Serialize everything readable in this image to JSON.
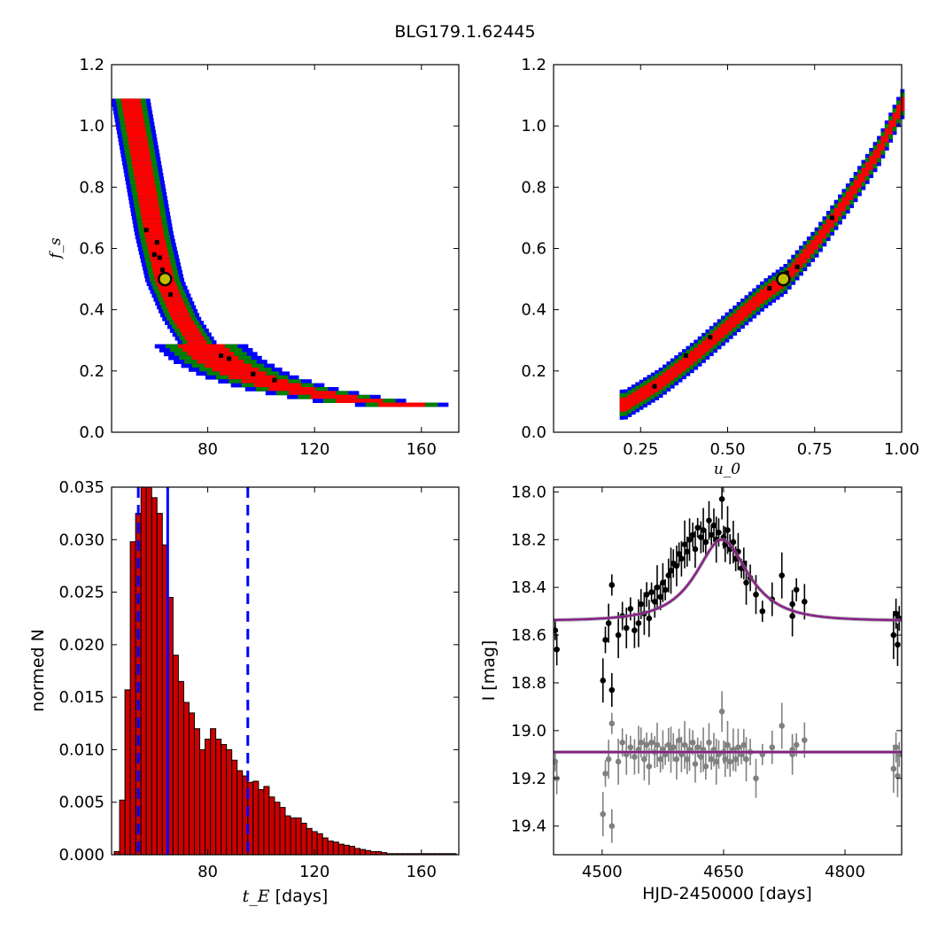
{
  "figure_title": "BLG179.1.62445",
  "colors": {
    "sigma1": "#ff0000",
    "sigma2": "#008000",
    "sigma3": "#0000ff",
    "best": "#000000",
    "marker_fill": "#bfbf00",
    "hist_bar": "#cc0000",
    "hist_lines": "#0000ff",
    "model": "#8b1a8b",
    "data_top": "#000000",
    "data_bottom": "#808080"
  },
  "chart_data": [
    {
      "id": "fs_vs_tE",
      "type": "heatmap",
      "title": "",
      "xlabel": "",
      "ylabel": "f_s",
      "xlim": [
        44,
        174
      ],
      "ylim": [
        0.0,
        1.2
      ],
      "xticks": [
        80,
        120,
        160
      ],
      "yticks": [
        "0.0",
        "0.2",
        "0.4",
        "0.6",
        "0.8",
        "1.0",
        "1.2"
      ],
      "levels": [
        "1-sigma",
        "2-sigma",
        "3-sigma"
      ],
      "ridge_points": [
        {
          "x": 51,
          "y": 1.1
        },
        {
          "x": 54,
          "y": 0.95
        },
        {
          "x": 57,
          "y": 0.8
        },
        {
          "x": 60,
          "y": 0.65
        },
        {
          "x": 64,
          "y": 0.5
        },
        {
          "x": 70,
          "y": 0.38
        },
        {
          "x": 76,
          "y": 0.3
        },
        {
          "x": 84,
          "y": 0.24
        },
        {
          "x": 95,
          "y": 0.19
        },
        {
          "x": 110,
          "y": 0.15
        },
        {
          "x": 125,
          "y": 0.125
        },
        {
          "x": 140,
          "y": 0.105
        },
        {
          "x": 155,
          "y": 0.095
        },
        {
          "x": 165,
          "y": 0.09
        }
      ],
      "best_fit": {
        "x": 64,
        "y": 0.5
      }
    },
    {
      "id": "fs_vs_u0",
      "type": "heatmap",
      "title": "",
      "xlabel": "u_0",
      "ylabel": "",
      "xlim": [
        0.0,
        1.0
      ],
      "ylim": [
        0.0,
        1.2
      ],
      "xticks": [
        "0.25",
        "0.50",
        "0.75",
        "1.00"
      ],
      "yticks": [
        "0.0",
        "0.2",
        "0.4",
        "0.6",
        "0.8",
        "1.0",
        "1.2"
      ],
      "levels": [
        "1-sigma",
        "2-sigma",
        "3-sigma"
      ],
      "ridge_points": [
        {
          "x": 0.2,
          "y": 0.09
        },
        {
          "x": 0.3,
          "y": 0.16
        },
        {
          "x": 0.4,
          "y": 0.25
        },
        {
          "x": 0.5,
          "y": 0.35
        },
        {
          "x": 0.6,
          "y": 0.45
        },
        {
          "x": 0.66,
          "y": 0.5
        },
        {
          "x": 0.75,
          "y": 0.62
        },
        {
          "x": 0.85,
          "y": 0.78
        },
        {
          "x": 0.93,
          "y": 0.92
        },
        {
          "x": 1.0,
          "y": 1.08
        }
      ],
      "best_fit": {
        "x": 0.66,
        "y": 0.5
      }
    },
    {
      "id": "tE_histogram",
      "type": "bar",
      "title": "",
      "xlabel": "t_E",
      "xlabel_unit": "[days]",
      "ylabel": "normed N",
      "xlim": [
        44,
        174
      ],
      "ylim": [
        0.0,
        0.035
      ],
      "xticks": [
        80,
        120,
        160
      ],
      "yticks": [
        "0.000",
        "0.005",
        "0.010",
        "0.015",
        "0.020",
        "0.025",
        "0.030",
        "0.035"
      ],
      "bin_start": 45,
      "bin_width": 2,
      "values": [
        0.0003,
        0.0052,
        0.0157,
        0.0298,
        0.0325,
        0.035,
        0.035,
        0.034,
        0.0325,
        0.0295,
        0.0245,
        0.019,
        0.0165,
        0.0145,
        0.0135,
        0.012,
        0.01,
        0.011,
        0.012,
        0.011,
        0.0105,
        0.01,
        0.009,
        0.008,
        0.0075,
        0.0069,
        0.007,
        0.0062,
        0.0065,
        0.0055,
        0.005,
        0.0045,
        0.0037,
        0.0035,
        0.0035,
        0.003,
        0.0025,
        0.0022,
        0.002,
        0.0016,
        0.0013,
        0.0012,
        0.001,
        0.0009,
        0.0008,
        0.0006,
        0.0005,
        0.0004,
        0.0003,
        0.0003,
        0.0002,
        0.0001,
        0.0001,
        0.0001,
        0.0001,
        0.0001,
        0.0001,
        0.0001,
        0.0001,
        0.0001,
        0.0001,
        0.0001,
        0.0001,
        0.0001
      ],
      "median_line": 65,
      "interval_lines": [
        54,
        95
      ]
    },
    {
      "id": "light_curve",
      "type": "scatter",
      "title": "",
      "xlabel": "HJD-2450000 [days]",
      "ylabel": "I [mag]",
      "xlim": [
        4440,
        4870
      ],
      "ylim": [
        19.52,
        17.98
      ],
      "xticks": [
        4500,
        4650,
        4800
      ],
      "yticks": [
        "18.0",
        "18.2",
        "18.4",
        "18.6",
        "18.8",
        "19.0",
        "19.2",
        "19.4"
      ],
      "model_top": {
        "t0": 4648,
        "base": 18.54,
        "peak": 18.2,
        "tE": 55,
        "u0": 0.66
      },
      "model_bottom": {
        "level": 19.09
      },
      "series": [
        {
          "name": "",
          "role": "observed",
          "points": [
            [
              4442,
              18.58
            ],
            [
              4444,
              18.66
            ],
            [
              4501,
              18.79
            ],
            [
              4504,
              18.62
            ],
            [
              4508,
              18.55
            ],
            [
              4512,
              18.39
            ],
            [
              4512,
              18.83
            ],
            [
              4520,
              18.6
            ],
            [
              4525,
              18.52
            ],
            [
              4530,
              18.57
            ],
            [
              4535,
              18.49
            ],
            [
              4540,
              18.58
            ],
            [
              4545,
              18.55
            ],
            [
              4548,
              18.47
            ],
            [
              4552,
              18.51
            ],
            [
              4555,
              18.43
            ],
            [
              4558,
              18.53
            ],
            [
              4561,
              18.42
            ],
            [
              4565,
              18.46
            ],
            [
              4568,
              18.4
            ],
            [
              4572,
              18.44
            ],
            [
              4575,
              18.38
            ],
            [
              4578,
              18.41
            ],
            [
              4582,
              18.35
            ],
            [
              4585,
              18.33
            ],
            [
              4588,
              18.3
            ],
            [
              4592,
              18.31
            ],
            [
              4595,
              18.26
            ],
            [
              4598,
              18.28
            ],
            [
              4602,
              18.22
            ],
            [
              4605,
              18.25
            ],
            [
              4608,
              18.2
            ],
            [
              4612,
              18.18
            ],
            [
              4615,
              18.24
            ],
            [
              4618,
              18.15
            ],
            [
              4622,
              18.19
            ],
            [
              4625,
              18.16
            ],
            [
              4628,
              18.21
            ],
            [
              4632,
              18.12
            ],
            [
              4635,
              18.18
            ],
            [
              4638,
              18.14
            ],
            [
              4641,
              18.2
            ],
            [
              4644,
              18.17
            ],
            [
              4648,
              18.03
            ],
            [
              4650,
              18.19
            ],
            [
              4652,
              18.22
            ],
            [
              4655,
              18.16
            ],
            [
              4658,
              18.24
            ],
            [
              4662,
              18.21
            ],
            [
              4665,
              18.28
            ],
            [
              4668,
              18.25
            ],
            [
              4672,
              18.32
            ],
            [
              4675,
              18.3
            ],
            [
              4678,
              18.38
            ],
            [
              4683,
              18.36
            ],
            [
              4690,
              18.43
            ],
            [
              4698,
              18.5
            ],
            [
              4710,
              18.45
            ],
            [
              4722,
              18.35
            ],
            [
              4735,
              18.47
            ],
            [
              4735,
              18.52
            ],
            [
              4740,
              18.41
            ],
            [
              4750,
              18.46
            ],
            [
              4860,
              18.6
            ],
            [
              4863,
              18.51
            ],
            [
              4865,
              18.64
            ],
            [
              4867,
              18.53
            ]
          ]
        },
        {
          "name": "",
          "role": "residuals",
          "points": [
            [
              4442,
              19.13
            ],
            [
              4444,
              19.2
            ],
            [
              4501,
              19.35
            ],
            [
              4504,
              19.18
            ],
            [
              4508,
              19.12
            ],
            [
              4512,
              18.97
            ],
            [
              4512,
              19.4
            ],
            [
              4520,
              19.13
            ],
            [
              4525,
              19.05
            ],
            [
              4530,
              19.1
            ],
            [
              4535,
              19.07
            ],
            [
              4540,
              19.11
            ],
            [
              4545,
              19.08
            ],
            [
              4548,
              19.05
            ],
            [
              4552,
              19.12
            ],
            [
              4555,
              19.06
            ],
            [
              4558,
              19.15
            ],
            [
              4561,
              19.05
            ],
            [
              4565,
              19.09
            ],
            [
              4568,
              19.06
            ],
            [
              4572,
              19.12
            ],
            [
              4575,
              19.08
            ],
            [
              4578,
              19.1
            ],
            [
              4582,
              19.06
            ],
            [
              4585,
              19.08
            ],
            [
              4588,
              19.07
            ],
            [
              4592,
              19.12
            ],
            [
              4595,
              19.04
            ],
            [
              4598,
              19.1
            ],
            [
              4602,
              19.06
            ],
            [
              4605,
              19.12
            ],
            [
              4608,
              19.08
            ],
            [
              4612,
              19.05
            ],
            [
              4615,
              19.14
            ],
            [
              4618,
              19.07
            ],
            [
              4622,
              19.11
            ],
            [
              4625,
              19.08
            ],
            [
              4628,
              19.15
            ],
            [
              4632,
              19.05
            ],
            [
              4635,
              19.12
            ],
            [
              4638,
              19.08
            ],
            [
              4641,
              19.13
            ],
            [
              4644,
              19.1
            ],
            [
              4648,
              18.92
            ],
            [
              4650,
              19.09
            ],
            [
              4652,
              19.12
            ],
            [
              4655,
              19.06
            ],
            [
              4658,
              19.13
            ],
            [
              4662,
              19.08
            ],
            [
              4665,
              19.12
            ],
            [
              4668,
              19.07
            ],
            [
              4672,
              19.1
            ],
            [
              4675,
              19.06
            ],
            [
              4678,
              19.12
            ],
            [
              4683,
              19.09
            ],
            [
              4690,
              19.2
            ],
            [
              4698,
              19.1
            ],
            [
              4710,
              19.07
            ],
            [
              4722,
              18.98
            ],
            [
              4735,
              19.08
            ],
            [
              4735,
              19.1
            ],
            [
              4740,
              19.06
            ],
            [
              4750,
              19.04
            ],
            [
              4860,
              19.16
            ],
            [
              4863,
              19.07
            ],
            [
              4865,
              19.19
            ],
            [
              4867,
              19.1
            ]
          ]
        }
      ]
    }
  ]
}
